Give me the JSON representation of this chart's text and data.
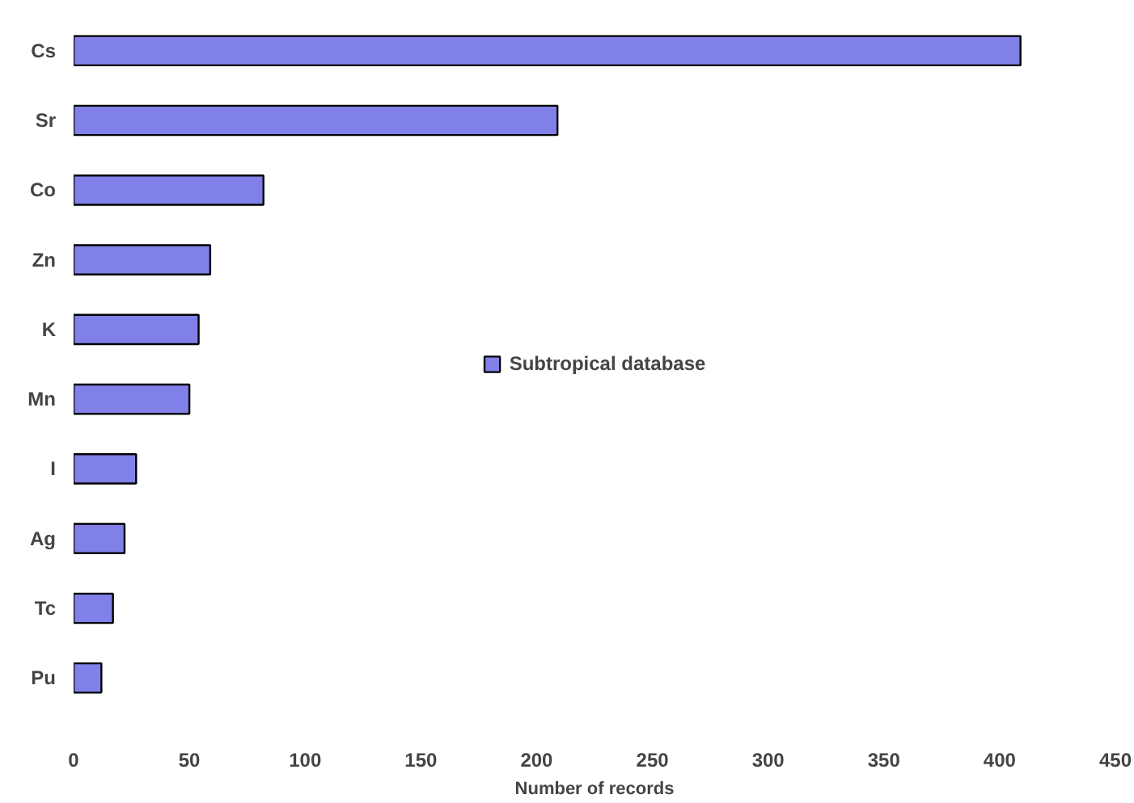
{
  "chart_data": {
    "type": "bar",
    "orientation": "horizontal",
    "xlabel": "Number of records",
    "categories": [
      "Cs",
      "Sr",
      "Co",
      "Zn",
      "K",
      "Mn",
      "I",
      "Ag",
      "Tc",
      "Pu"
    ],
    "series": [
      {
        "name": "Subtropical database",
        "color": "#8080e8",
        "values": [
          409,
          209,
          82,
          59,
          54,
          50,
          27,
          22,
          17,
          12
        ]
      }
    ],
    "xlim": [
      0,
      450
    ],
    "xticks": [
      0,
      50,
      100,
      150,
      200,
      250,
      300,
      350,
      400,
      450
    ],
    "grid": false,
    "legend": "center"
  }
}
